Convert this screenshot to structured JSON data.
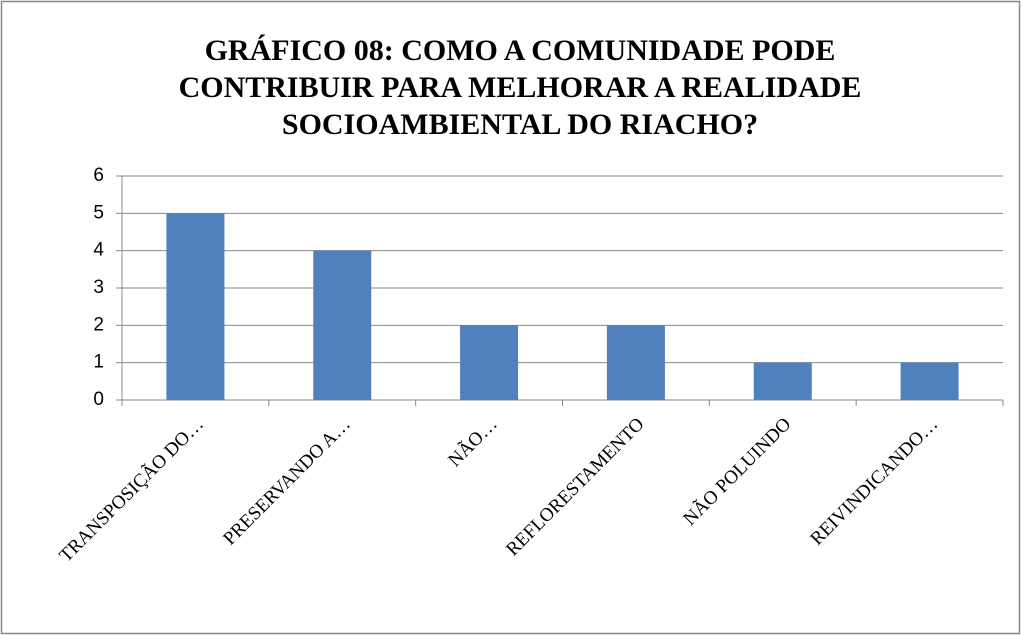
{
  "chart_data": {
    "type": "bar",
    "title": "GRÁFICO 08: COMO A COMUNIDADE PODE CONTRIBUIR PARA  MELHORAR A REALIDADE SOCIOAMBIENTAL DO RIACHO?",
    "categories": [
      "TRANSPOSIÇÃO DO…",
      "PRESERVANDO A…",
      "NÃO…",
      "REFLORESTAMENTO",
      "NÃO POLUINDO",
      "REIVINDICANDO…"
    ],
    "values": [
      5,
      4,
      2,
      2,
      1,
      1
    ],
    "color": "#4f81bd",
    "ylim": [
      0,
      6
    ],
    "yticks": [
      0,
      1,
      2,
      3,
      4,
      5,
      6
    ],
    "grid": true
  }
}
